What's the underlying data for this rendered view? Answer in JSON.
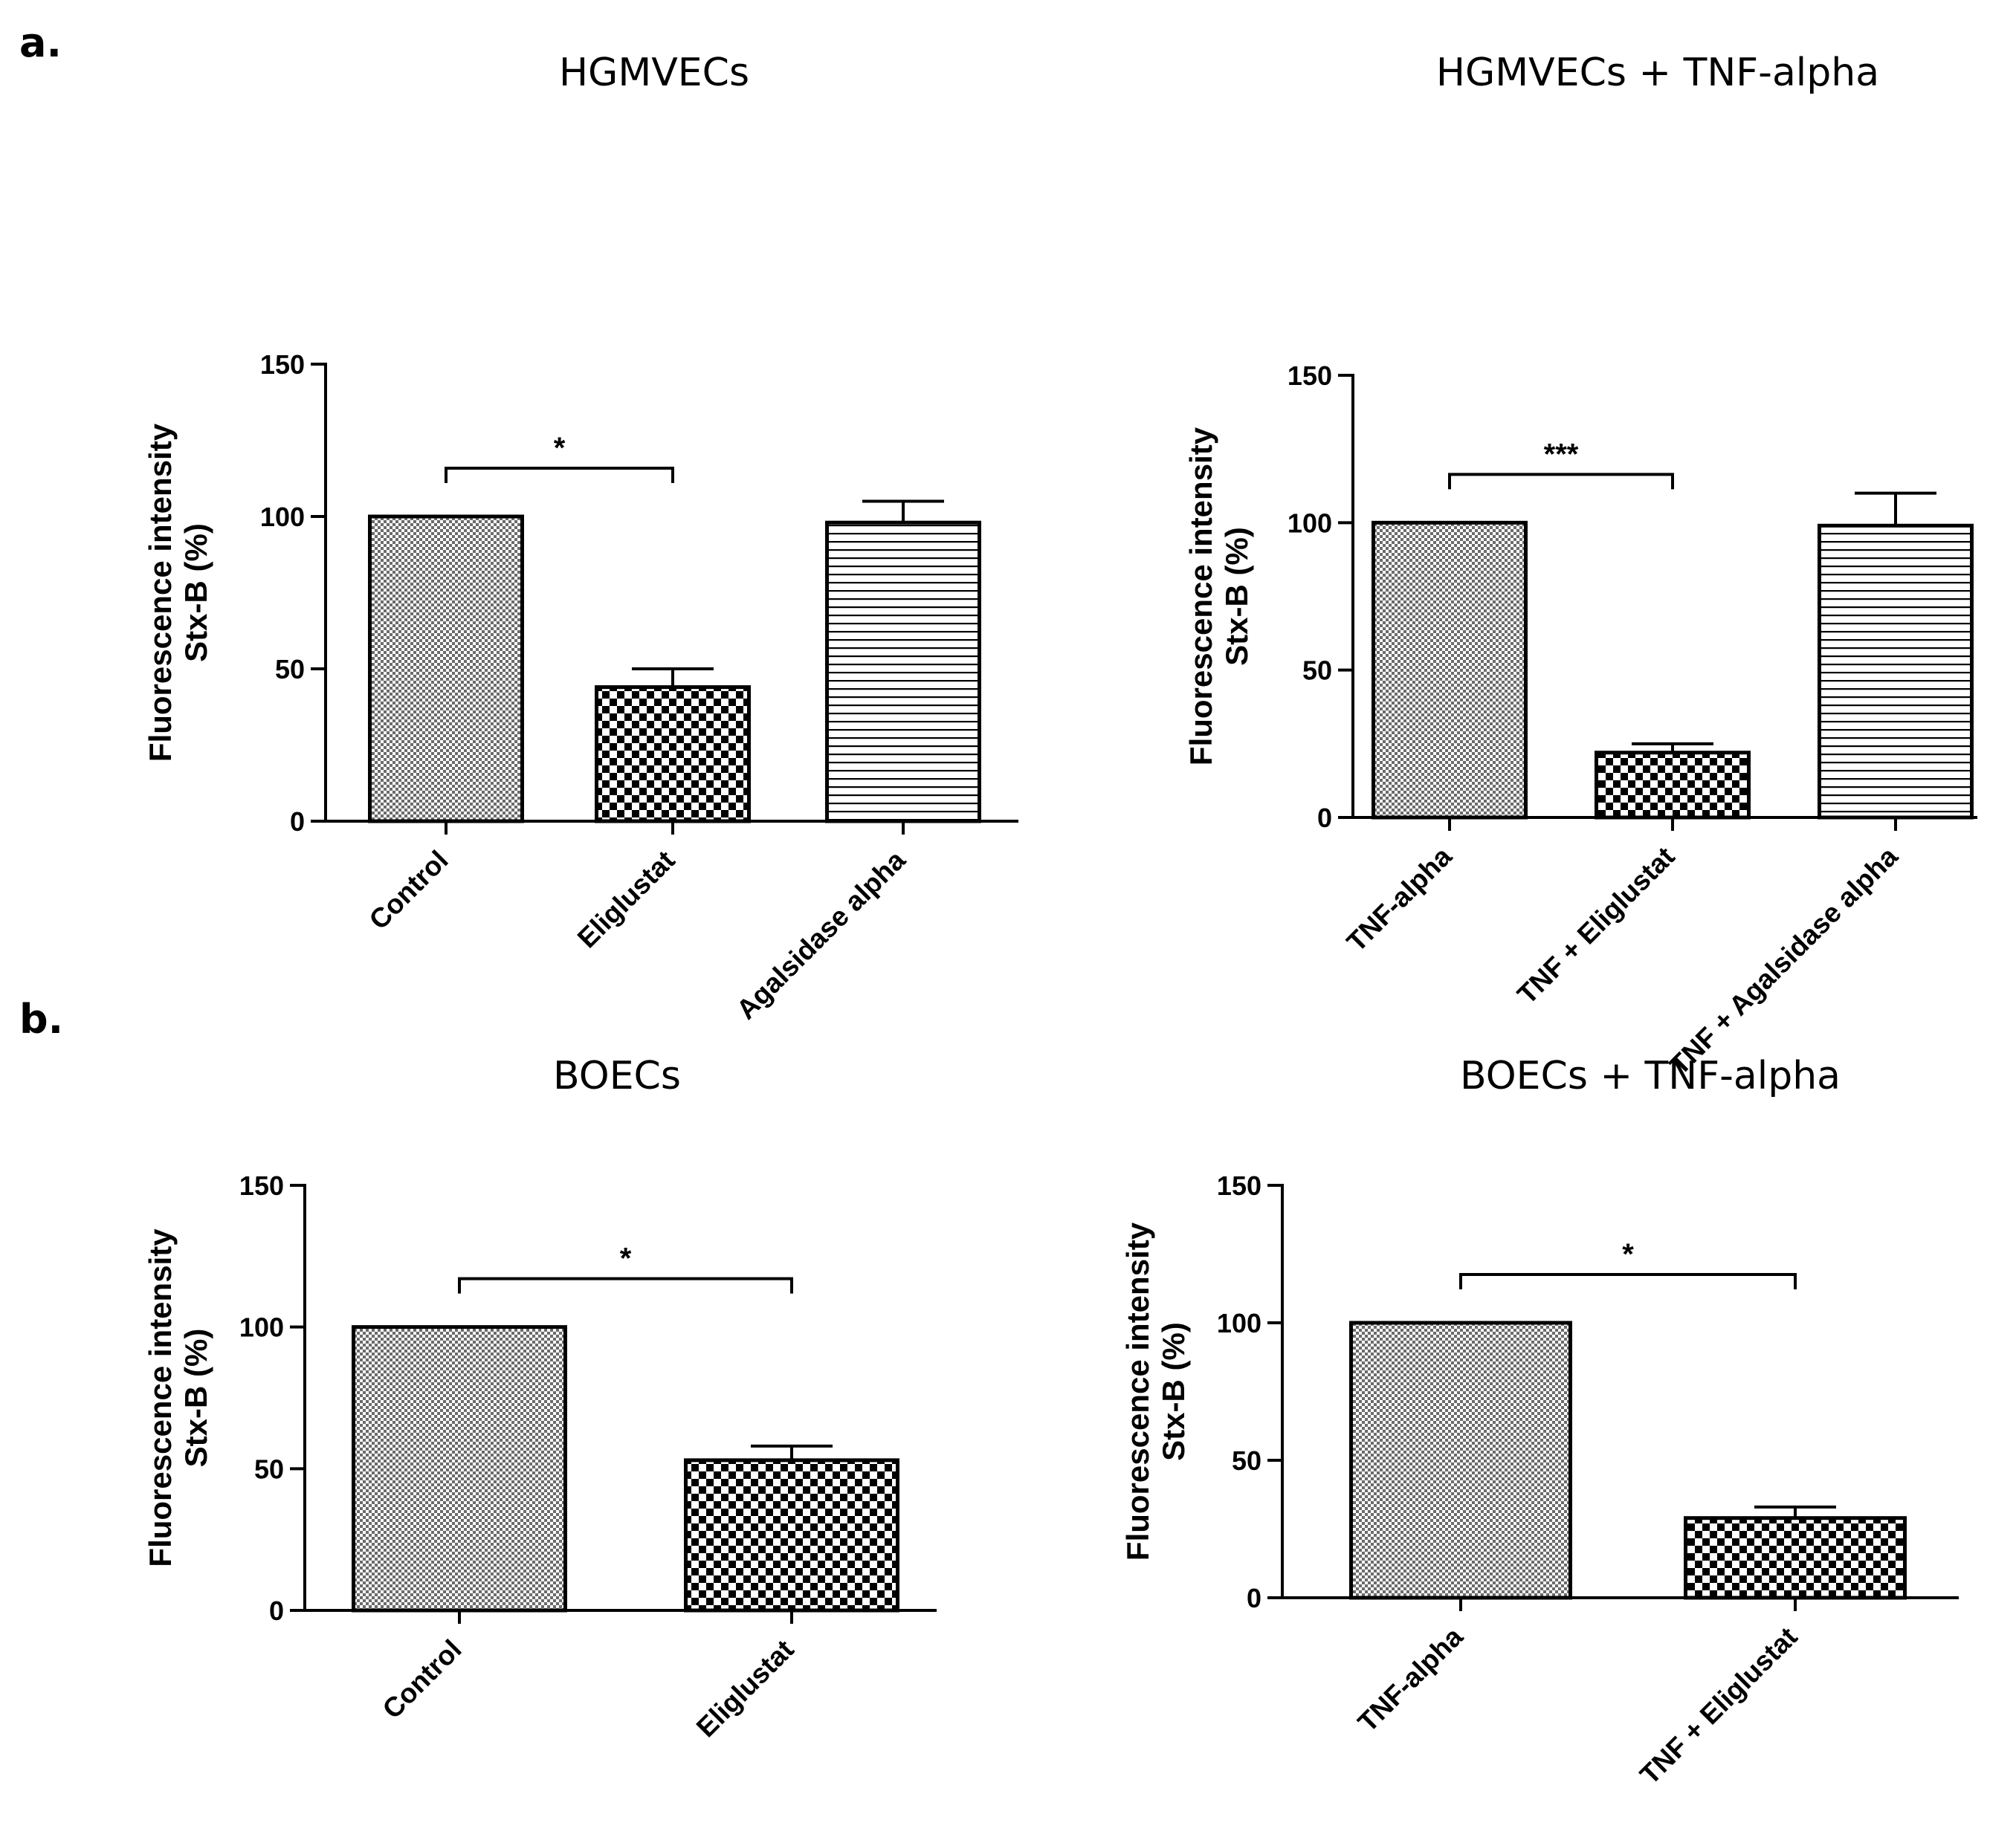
{
  "panels": [
    {
      "letter": "a."
    },
    {
      "letter": "b."
    }
  ],
  "colors": {
    "bar_stroke": "#000000",
    "background": "#ffffff"
  },
  "chart_data": [
    {
      "type": "bar",
      "title": "HGMVECs",
      "ylabel_lines": [
        "Fluorescence intensity",
        "Stx-B (%)"
      ],
      "ylim": [
        0,
        150
      ],
      "yticks": [
        0,
        50,
        100,
        150
      ],
      "categories": [
        "Control",
        "Eliglustat",
        "Agalsidase alpha"
      ],
      "values": [
        100,
        44,
        98
      ],
      "errors": [
        0,
        6,
        7
      ],
      "patterns": [
        "fine-check",
        "coarse-check",
        "hlines"
      ],
      "significance": [
        {
          "from": 0,
          "to": 1,
          "label": "*"
        }
      ],
      "grid": false
    },
    {
      "type": "bar",
      "title": "HGMVECs + TNF-alpha",
      "ylabel_lines": [
        "Fluorescence intensity",
        "Stx-B (%)"
      ],
      "ylim": [
        0,
        150
      ],
      "yticks": [
        0,
        50,
        100,
        150
      ],
      "categories": [
        "TNF-alpha",
        "TNF + Eliglustat",
        "TNF + Agalsidase alpha"
      ],
      "values": [
        100,
        22,
        99
      ],
      "errors": [
        0,
        3,
        11
      ],
      "patterns": [
        "fine-check",
        "coarse-check",
        "hlines"
      ],
      "significance": [
        {
          "from": 0,
          "to": 1,
          "label": "***"
        }
      ],
      "grid": false
    },
    {
      "type": "bar",
      "title": "BOECs",
      "ylabel_lines": [
        "Fluorescence intensity",
        "Stx-B (%)"
      ],
      "ylim": [
        0,
        150
      ],
      "yticks": [
        0,
        50,
        100,
        150
      ],
      "categories": [
        "Control",
        "Eliglustat"
      ],
      "values": [
        100,
        53
      ],
      "errors": [
        0,
        5
      ],
      "patterns": [
        "fine-check",
        "coarse-check"
      ],
      "significance": [
        {
          "from": 0,
          "to": 1,
          "label": "*"
        }
      ],
      "grid": false
    },
    {
      "type": "bar",
      "title": "BOECs + TNF-alpha",
      "ylabel_lines": [
        "Fluorescence intensity",
        "Stx-B (%)"
      ],
      "ylim": [
        0,
        150
      ],
      "yticks": [
        0,
        50,
        100,
        150
      ],
      "categories": [
        "TNF-alpha",
        "TNF + Eliglustat"
      ],
      "values": [
        100,
        29
      ],
      "errors": [
        0,
        4
      ],
      "patterns": [
        "fine-check",
        "coarse-check"
      ],
      "significance": [
        {
          "from": 0,
          "to": 1,
          "label": "*"
        }
      ],
      "grid": false
    }
  ]
}
